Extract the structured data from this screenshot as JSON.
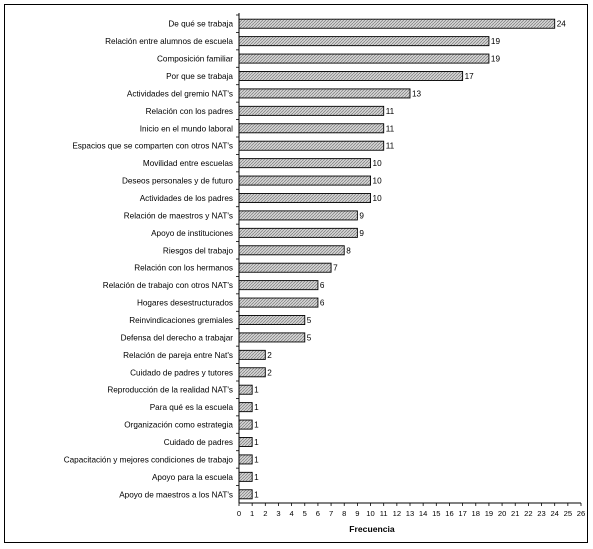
{
  "chart_data": {
    "type": "bar",
    "orientation": "horizontal",
    "categories": [
      "De qué se trabaja",
      "Relación entre alumnos de escuela",
      "Composición familiar",
      "Por que se trabaja",
      "Actividades del gremio NAT's",
      "Relación con los padres",
      "Inicio en el mundo laboral",
      "Espacios que se comparten con otros NAT's",
      "Movilidad entre escuelas",
      "Deseos personales y de futuro",
      "Actividades de los padres",
      "Relación de maestros y NAT's",
      "Apoyo de instituciones",
      "Riesgos del trabajo",
      "Relación con los hermanos",
      "Relación de trabajo con otros NAT's",
      "Hogares desestructurados",
      "Reinvindicaciones gremiales",
      "Defensa del derecho a trabajar",
      "Relación de pareja entre Nat's",
      "Cuidado de padres y tutores",
      "Reproducción de la realidad NAT's",
      "Para qué es la escuela",
      "Organización como estrategia",
      "Cuidado de padres",
      "Capacitación y mejores condiciones de trabajo",
      "Apoyo para la escuela",
      "Apoyo de maestros a los NAT's"
    ],
    "values": [
      24,
      19,
      19,
      17,
      13,
      11,
      11,
      11,
      10,
      10,
      10,
      9,
      9,
      8,
      7,
      6,
      6,
      5,
      5,
      2,
      2,
      1,
      1,
      1,
      1,
      1,
      1,
      1
    ],
    "xlabel": "Frecuencia",
    "xlim": [
      0,
      26
    ],
    "xticks": [
      "0",
      "1",
      "2",
      "3",
      "4",
      "5",
      "6",
      "7",
      "8",
      "9",
      "10",
      "11",
      "12",
      "13",
      "14",
      "15",
      "16",
      "17",
      "18",
      "19",
      "20",
      "21",
      "22",
      "23",
      "24",
      "25",
      "26"
    ],
    "grid": false,
    "legend": "none",
    "bar_fill": "#c8c8c8",
    "bar_stroke": "#000000"
  }
}
